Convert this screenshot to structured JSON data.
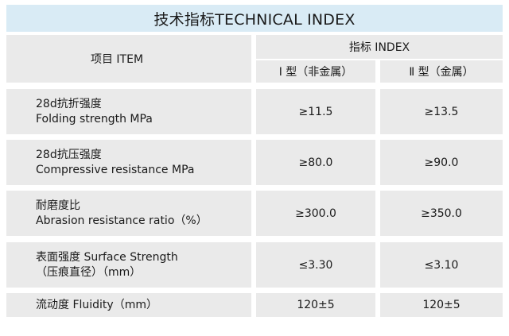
{
  "title": "技术指标TECHNICAL INDEX",
  "header": {
    "item": "项目 ITEM",
    "index": "指标 INDEX",
    "type1": "Ⅰ 型（非金属）",
    "type2": "Ⅱ 型（金属）"
  },
  "rows": [
    {
      "cn": "28d抗折强度",
      "en": "Folding strength MPa",
      "v1": "≥11.5",
      "v2": "≥13.5"
    },
    {
      "cn": "28d抗压强度",
      "en": "Compressive resistance MPa",
      "v1": "≥80.0",
      "v2": "≥90.0"
    },
    {
      "cn": "耐磨度比",
      "en": "Abrasion  resistance ratio（%）",
      "v1": "≥300.0",
      "v2": "≥350.0"
    },
    {
      "cn": "表面强度 Surface Strength",
      "en": "（压痕直径）（mm）",
      "v1": "≤3.30",
      "v2": "≤3.10"
    },
    {
      "cn": "流动度 Fluidity（mm）",
      "en": "",
      "v1": "120±5",
      "v2": "120±5"
    }
  ]
}
